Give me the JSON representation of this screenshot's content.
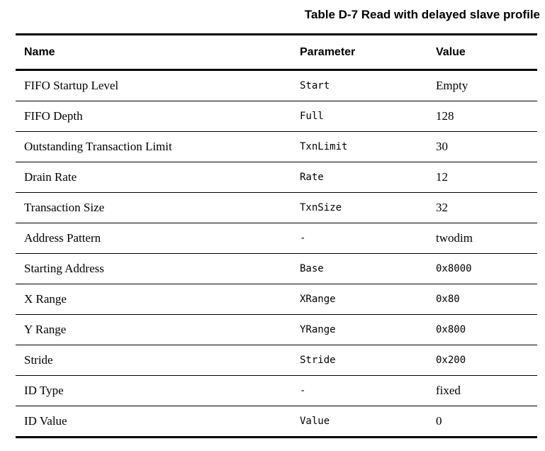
{
  "caption": "Table D-7 Read with delayed slave profile",
  "table": {
    "columns": [
      {
        "label": "Name"
      },
      {
        "label": "Parameter"
      },
      {
        "label": "Value"
      }
    ],
    "rows": [
      {
        "name": "FIFO Startup Level",
        "parameter": "Start",
        "value": "Empty",
        "value_mono": false
      },
      {
        "name": "FIFO Depth",
        "parameter": "Full",
        "value": "128",
        "value_mono": false
      },
      {
        "name": "Outstanding Transaction Limit",
        "parameter": "TxnLimit",
        "value": "30",
        "value_mono": false
      },
      {
        "name": "Drain Rate",
        "parameter": "Rate",
        "value": "12",
        "value_mono": false
      },
      {
        "name": "Transaction Size",
        "parameter": "TxnSize",
        "value": "32",
        "value_mono": false
      },
      {
        "name": "Address Pattern",
        "parameter": "-",
        "value": "twodim",
        "value_mono": false
      },
      {
        "name": "Starting Address",
        "parameter": "Base",
        "value": "0x8000",
        "value_mono": true
      },
      {
        "name": "X Range",
        "parameter": "XRange",
        "value": "0x80",
        "value_mono": true
      },
      {
        "name": "Y Range",
        "parameter": "YRange",
        "value": "0x800",
        "value_mono": true
      },
      {
        "name": "Stride",
        "parameter": "Stride",
        "value": "0x200",
        "value_mono": true
      },
      {
        "name": "ID Type",
        "parameter": "-",
        "value": "fixed",
        "value_mono": false
      },
      {
        "name": "ID Value",
        "parameter": "Value",
        "value": "0",
        "value_mono": false
      }
    ],
    "text_color": "#000000",
    "background_color": "#ffffff"
  }
}
